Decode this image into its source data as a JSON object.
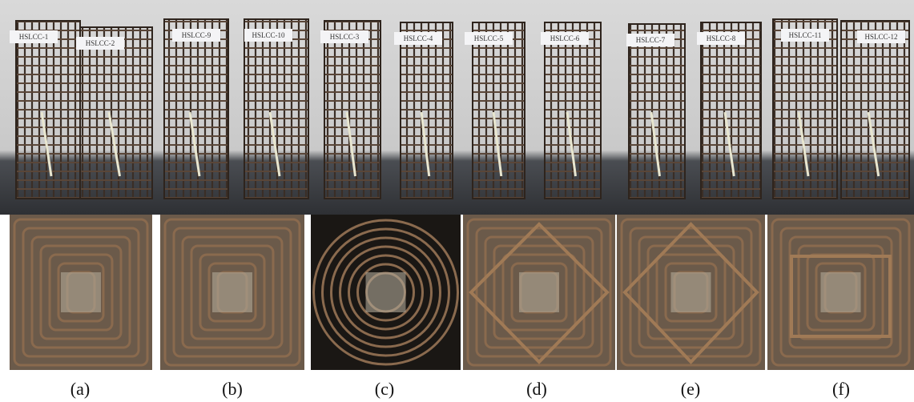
{
  "top_photo": {
    "labels": [
      "HSLCC-1",
      "HSLCC-2",
      "HSLCC-9",
      "HSLCC-10",
      "HSLCC-3",
      "HSLCC-4",
      "HSLCC-5",
      "HSLCC-6",
      "HSLCC-7",
      "HSLCC-8",
      "HSLCC-11",
      "HSLCC-12"
    ]
  },
  "bottom_photos": {
    "captions": [
      "(a)",
      "(b)",
      "(c)",
      "(d)",
      "(e)",
      "(f)"
    ]
  }
}
